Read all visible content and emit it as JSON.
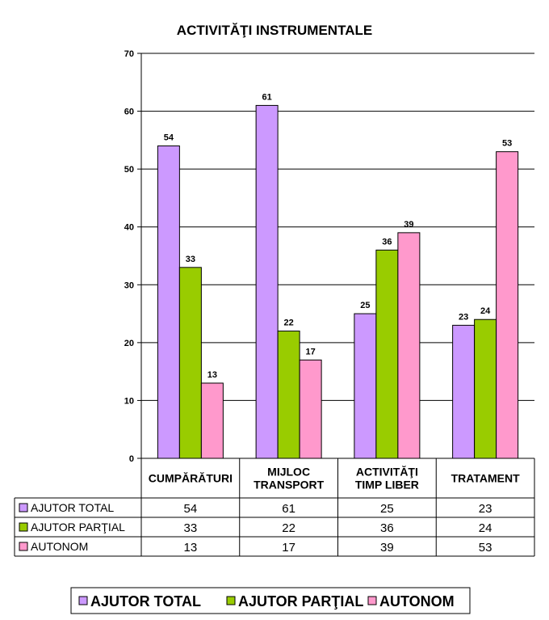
{
  "chart_data": {
    "type": "bar",
    "title": "ACTIVITĂŢI INSTRUMENTALE",
    "categories": [
      [
        "CUMPĂRĂTURI"
      ],
      [
        "MIJLOC",
        "TRANSPORT"
      ],
      [
        "ACTIVITĂŢI",
        "TIMP LIBER"
      ],
      [
        "TRATAMENT"
      ]
    ],
    "series": [
      {
        "name": "AJUTOR TOTAL",
        "color": "#CC99FF",
        "values": [
          54,
          61,
          25,
          23
        ]
      },
      {
        "name": "AJUTOR PARŢIAL",
        "color": "#99CC00",
        "values": [
          33,
          22,
          36,
          24
        ]
      },
      {
        "name": "AUTONOM",
        "color": "#FF99CC",
        "values": [
          13,
          17,
          39,
          53
        ]
      }
    ],
    "ylim": [
      0,
      70
    ],
    "yticks": [
      0,
      10,
      20,
      30,
      40,
      50,
      60,
      70
    ],
    "grid": true,
    "data_table": true,
    "legend_position": "bottom"
  }
}
